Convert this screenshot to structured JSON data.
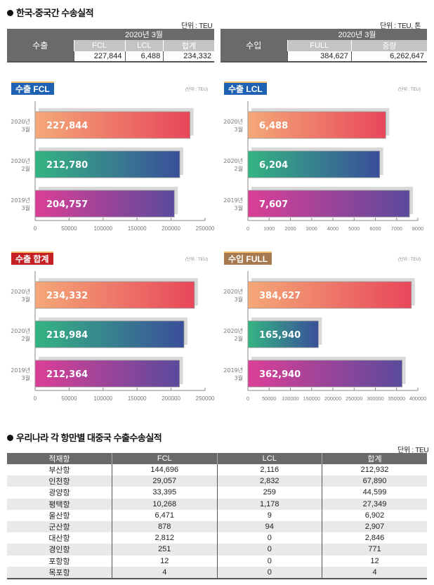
{
  "section1": {
    "title": "한국-중국간 수송실적",
    "export_unit": "단위 : TEU",
    "import_unit": "단위 : TEU, 톤",
    "export_table": {
      "lead": "수출",
      "period": "2020년 3월",
      "headers": [
        "FCL",
        "LCL",
        "합계"
      ],
      "values": [
        "227,844",
        "6,488",
        "234,332"
      ]
    },
    "import_table": {
      "lead": "수입",
      "period": "2020년 3월",
      "headers": [
        "FULL",
        "중량"
      ],
      "values": [
        "384,627",
        "6,262,647"
      ]
    }
  },
  "colors": {
    "grad_top": [
      "#f4a878",
      "#e8475a"
    ],
    "grad_mid": [
      "#34b482",
      "#3a4f9a"
    ],
    "grad_bot": [
      "#dc3f96",
      "#5a4a9c"
    ],
    "shadow": "#d9d9d9",
    "axis": "#888888"
  },
  "chart_data": [
    {
      "type": "bar",
      "title": "수출 FCL",
      "unit": "(단위 : TEU)",
      "badge_color": "blue",
      "categories": [
        [
          "2020년",
          "3월"
        ],
        [
          "2020년",
          "2월"
        ],
        [
          "2019년",
          "3월"
        ]
      ],
      "values": [
        227844,
        212780,
        204757
      ],
      "labels": [
        "227,844",
        "212,780",
        "204,757"
      ],
      "xlim": [
        0,
        250000
      ],
      "ticks": [
        0,
        50000,
        100000,
        150000,
        200000,
        250000
      ]
    },
    {
      "type": "bar",
      "title": "수출 LCL",
      "unit": "(단위 : TEU)",
      "badge_color": "blue",
      "categories": [
        [
          "2020년",
          "3월"
        ],
        [
          "2020년",
          "2월"
        ],
        [
          "2019년",
          "3월"
        ]
      ],
      "values": [
        6488,
        6204,
        7607
      ],
      "labels": [
        "6,488",
        "6,204",
        "7,607"
      ],
      "xlim": [
        0,
        8000
      ],
      "ticks": [
        0,
        1000,
        2000,
        3000,
        4000,
        5000,
        6000,
        7000,
        8000
      ]
    },
    {
      "type": "bar",
      "title": "수출 합계",
      "unit": "(단위 : TEU)",
      "badge_color": "red",
      "categories": [
        [
          "2020년",
          "3월"
        ],
        [
          "2020년",
          "2월"
        ],
        [
          "2019년",
          "3월"
        ]
      ],
      "values": [
        234332,
        218984,
        212364
      ],
      "labels": [
        "234,332",
        "218,984",
        "212,364"
      ],
      "xlim": [
        0,
        250000
      ],
      "ticks": [
        0,
        50000,
        100000,
        150000,
        200000,
        250000
      ]
    },
    {
      "type": "bar",
      "title": "수입 FULL",
      "unit": "(단위 : TEU)",
      "badge_color": "wood",
      "categories": [
        [
          "2020년",
          "3월"
        ],
        [
          "2020년",
          "2월"
        ],
        [
          "2019년",
          "3월"
        ]
      ],
      "values": [
        384627,
        165940,
        362940
      ],
      "labels": [
        "384,627",
        "165,940",
        "362,940"
      ],
      "xlim": [
        0,
        400000
      ],
      "ticks": [
        0,
        50000,
        100000,
        150000,
        200000,
        250000,
        300000,
        350000,
        400000
      ]
    }
  ],
  "section2": {
    "title": "우리나라 각 항만별 대중국 수출수송실적",
    "unit": "단위 : TEU",
    "headers": [
      "적재항",
      "FCL",
      "LCL",
      "합계"
    ],
    "rows": [
      [
        "부산항",
        "144,696",
        "2,116",
        "212,932"
      ],
      [
        "인천항",
        "29,057",
        "2,832",
        "67,890"
      ],
      [
        "광양항",
        "33,395",
        "259",
        "44,599"
      ],
      [
        "평택항",
        "10,268",
        "1,178",
        "27,349"
      ],
      [
        "울산항",
        "6,471",
        "9",
        "6,902"
      ],
      [
        "군산항",
        "878",
        "94",
        "2,907"
      ],
      [
        "대산항",
        "2,812",
        "0",
        "2,846"
      ],
      [
        "경인항",
        "251",
        "0",
        "771"
      ],
      [
        "포항항",
        "12",
        "0",
        "12"
      ],
      [
        "목포항",
        "4",
        "0",
        "4"
      ]
    ]
  }
}
